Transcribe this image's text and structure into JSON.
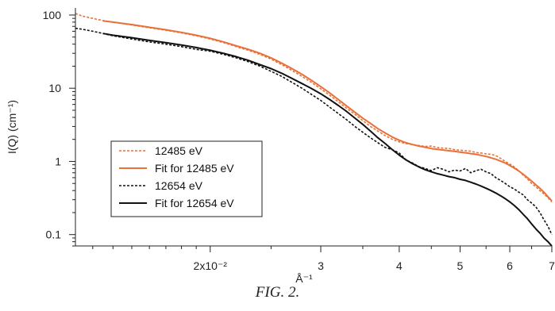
{
  "figure_caption": "FIG. 2.",
  "chart_data": {
    "type": "line",
    "xscale": "log",
    "yscale": "log",
    "xlim": [
      0.0122,
      0.07
    ],
    "ylim": [
      0.07,
      125
    ],
    "ylabel": "I(Q) (cm⁻¹)",
    "xlabel": "Å⁻¹",
    "x_ticks": [
      {
        "value": 0.02,
        "label": "2x10⁻²"
      },
      {
        "value": 0.03,
        "label": "3"
      },
      {
        "value": 0.04,
        "label": "4"
      },
      {
        "value": 0.05,
        "label": "5"
      },
      {
        "value": 0.06,
        "label": "6"
      },
      {
        "value": 0.07,
        "label": "7"
      }
    ],
    "y_ticks": [
      {
        "value": 100,
        "label": "100"
      },
      {
        "value": 10,
        "label": "10"
      },
      {
        "value": 1,
        "label": "1"
      },
      {
        "value": 0.1,
        "label": "0.1"
      }
    ],
    "legend_position": "lower-left",
    "series": [
      {
        "name": "12485 eV",
        "color": "#E8713A",
        "style": "dotted",
        "x": [
          0.0122,
          0.0125,
          0.013,
          0.0135,
          0.014,
          0.015,
          0.016,
          0.017,
          0.018,
          0.019,
          0.02,
          0.021,
          0.022,
          0.023,
          0.024,
          0.025,
          0.026,
          0.027,
          0.028,
          0.029,
          0.03,
          0.031,
          0.032,
          0.033,
          0.034,
          0.035,
          0.036,
          0.037,
          0.038,
          0.039,
          0.04,
          0.041,
          0.042,
          0.043,
          0.044,
          0.045,
          0.046,
          0.047,
          0.048,
          0.049,
          0.05,
          0.051,
          0.052,
          0.053,
          0.054,
          0.055,
          0.056,
          0.057,
          0.058,
          0.059,
          0.06,
          0.061,
          0.062,
          0.063,
          0.064,
          0.065,
          0.066,
          0.067,
          0.068,
          0.069,
          0.07
        ],
        "y": [
          105,
          97,
          90,
          84,
          80,
          73,
          67,
          62,
          57,
          52,
          47,
          42,
          37,
          33,
          29,
          25,
          21,
          17.5,
          14.5,
          12,
          9.8,
          8.0,
          6.5,
          5.3,
          4.4,
          3.6,
          3.0,
          2.6,
          2.25,
          2.0,
          1.85,
          1.75,
          1.7,
          1.65,
          1.6,
          1.62,
          1.55,
          1.52,
          1.5,
          1.45,
          1.42,
          1.4,
          1.38,
          1.32,
          1.3,
          1.27,
          1.25,
          1.2,
          1.1,
          1.0,
          0.92,
          0.84,
          0.75,
          0.65,
          0.58,
          0.5,
          0.45,
          0.4,
          0.36,
          0.32,
          0.28
        ]
      },
      {
        "name": "Fit for 12485 eV",
        "color": "#E8713A",
        "style": "solid",
        "x": [
          0.0135,
          0.014,
          0.015,
          0.016,
          0.017,
          0.018,
          0.019,
          0.02,
          0.021,
          0.022,
          0.023,
          0.024,
          0.025,
          0.026,
          0.027,
          0.028,
          0.029,
          0.03,
          0.031,
          0.032,
          0.033,
          0.034,
          0.035,
          0.036,
          0.037,
          0.038,
          0.039,
          0.04,
          0.041,
          0.042,
          0.043,
          0.044,
          0.045,
          0.046,
          0.047,
          0.048,
          0.049,
          0.05,
          0.051,
          0.052,
          0.053,
          0.054,
          0.055,
          0.056,
          0.057,
          0.058,
          0.059,
          0.06,
          0.061,
          0.062,
          0.063,
          0.064,
          0.065,
          0.066,
          0.067,
          0.068,
          0.069,
          0.07
        ],
        "y": [
          83,
          80,
          74,
          68,
          63,
          58,
          53,
          48,
          43,
          38,
          34,
          30,
          26,
          22,
          18.5,
          15.5,
          12.8,
          10.5,
          8.6,
          7.0,
          5.7,
          4.7,
          3.9,
          3.3,
          2.8,
          2.45,
          2.15,
          1.95,
          1.8,
          1.7,
          1.62,
          1.56,
          1.5,
          1.46,
          1.43,
          1.4,
          1.37,
          1.34,
          1.31,
          1.28,
          1.25,
          1.21,
          1.17,
          1.12,
          1.07,
          1.01,
          0.95,
          0.88,
          0.81,
          0.74,
          0.67,
          0.6,
          0.54,
          0.48,
          0.43,
          0.38,
          0.33,
          0.29
        ]
      },
      {
        "name": "12654 eV",
        "color": "#111111",
        "style": "dotted",
        "x": [
          0.0122,
          0.0125,
          0.013,
          0.0135,
          0.014,
          0.015,
          0.016,
          0.017,
          0.018,
          0.019,
          0.02,
          0.021,
          0.022,
          0.023,
          0.024,
          0.025,
          0.026,
          0.027,
          0.028,
          0.029,
          0.03,
          0.031,
          0.032,
          0.033,
          0.034,
          0.035,
          0.036,
          0.037,
          0.038,
          0.039,
          0.04,
          0.041,
          0.042,
          0.043,
          0.044,
          0.045,
          0.046,
          0.047,
          0.048,
          0.049,
          0.05,
          0.051,
          0.052,
          0.053,
          0.054,
          0.055,
          0.056,
          0.057,
          0.058,
          0.059,
          0.06,
          0.061,
          0.062,
          0.063,
          0.064,
          0.065,
          0.066,
          0.067,
          0.068,
          0.069,
          0.07
        ],
        "y": [
          66,
          64,
          60,
          56,
          52,
          47,
          43,
          40,
          37,
          34,
          32,
          29,
          26,
          23,
          20,
          17,
          14.5,
          12,
          10,
          8.2,
          6.8,
          5.5,
          4.5,
          3.7,
          3.0,
          2.5,
          2.1,
          1.8,
          1.55,
          1.45,
          1.3,
          1.05,
          0.95,
          0.85,
          0.8,
          0.75,
          0.82,
          0.78,
          0.72,
          0.76,
          0.74,
          0.8,
          0.7,
          0.75,
          0.78,
          0.72,
          0.68,
          0.6,
          0.55,
          0.5,
          0.45,
          0.42,
          0.38,
          0.35,
          0.3,
          0.27,
          0.24,
          0.2,
          0.16,
          0.13,
          0.1
        ]
      },
      {
        "name": "Fit for 12654 eV",
        "color": "#111111",
        "style": "solid",
        "x": [
          0.0135,
          0.014,
          0.015,
          0.016,
          0.017,
          0.018,
          0.019,
          0.02,
          0.021,
          0.022,
          0.023,
          0.024,
          0.025,
          0.026,
          0.027,
          0.028,
          0.029,
          0.03,
          0.031,
          0.032,
          0.033,
          0.034,
          0.035,
          0.036,
          0.037,
          0.038,
          0.039,
          0.04,
          0.041,
          0.042,
          0.043,
          0.044,
          0.045,
          0.046,
          0.047,
          0.048,
          0.049,
          0.05,
          0.051,
          0.052,
          0.053,
          0.054,
          0.055,
          0.056,
          0.057,
          0.058,
          0.059,
          0.06,
          0.061,
          0.062,
          0.063,
          0.064,
          0.065,
          0.066,
          0.067,
          0.068,
          0.069,
          0.07
        ],
        "y": [
          56,
          53,
          49,
          45,
          42,
          39,
          36,
          33,
          30,
          27,
          24,
          21,
          18.5,
          16,
          13.6,
          11.6,
          9.9,
          8.4,
          7.0,
          5.8,
          4.8,
          3.9,
          3.2,
          2.6,
          2.1,
          1.75,
          1.45,
          1.22,
          1.05,
          0.93,
          0.84,
          0.77,
          0.72,
          0.68,
          0.65,
          0.62,
          0.6,
          0.57,
          0.55,
          0.52,
          0.49,
          0.46,
          0.43,
          0.4,
          0.37,
          0.34,
          0.31,
          0.28,
          0.25,
          0.22,
          0.19,
          0.165,
          0.14,
          0.12,
          0.105,
          0.09,
          0.08,
          0.07
        ]
      }
    ]
  }
}
